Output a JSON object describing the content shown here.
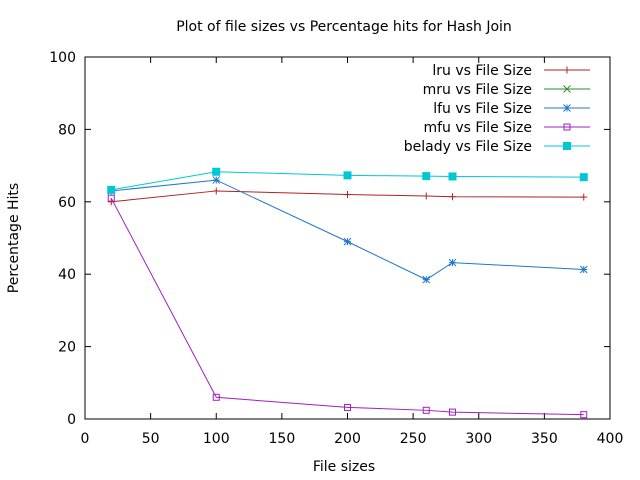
{
  "chart_data": {
    "type": "line",
    "title": "Plot of file sizes vs Percentage hits for Hash Join",
    "xlabel": "File sizes",
    "ylabel": "Percentage Hits",
    "xlim": [
      0,
      400
    ],
    "ylim": [
      0,
      100
    ],
    "xticks": [
      "0",
      "50",
      "100",
      "150",
      "200",
      "250",
      "300",
      "350",
      "400"
    ],
    "yticks": [
      "0",
      "20",
      "40",
      "60",
      "80",
      "100"
    ],
    "legend_position": "top-right",
    "grid": false,
    "series": [
      {
        "name": "lru vs File Size",
        "color": "#b22222",
        "marker": "plus",
        "points": [
          [
            20,
            60
          ],
          [
            100,
            63
          ],
          [
            200,
            62
          ],
          [
            260,
            61.6
          ],
          [
            280,
            61.4
          ],
          [
            380,
            61.3
          ]
        ]
      },
      {
        "name": "mru vs File Size",
        "color": "#2e8b2e",
        "marker": "cross",
        "points": []
      },
      {
        "name": "lfu vs File Size",
        "color": "#1f77c8",
        "marker": "star",
        "points": [
          [
            20,
            63
          ],
          [
            100,
            66
          ],
          [
            200,
            49
          ],
          [
            260,
            38.5
          ],
          [
            280,
            43.2
          ],
          [
            380,
            41.3
          ]
        ]
      },
      {
        "name": "mfu vs File Size",
        "color": "#a020c0",
        "marker": "square",
        "points": [
          [
            20,
            61
          ],
          [
            100,
            6
          ],
          [
            200,
            3.2
          ],
          [
            260,
            2.4
          ],
          [
            280,
            1.9
          ],
          [
            380,
            1.2
          ]
        ]
      },
      {
        "name": "belady vs File Size",
        "color": "#00c8d2",
        "marker": "filled-square",
        "points": [
          [
            20,
            63.3
          ],
          [
            100,
            68.3
          ],
          [
            200,
            67.3
          ],
          [
            260,
            67.1
          ],
          [
            280,
            67
          ],
          [
            380,
            66.8
          ]
        ]
      }
    ]
  }
}
